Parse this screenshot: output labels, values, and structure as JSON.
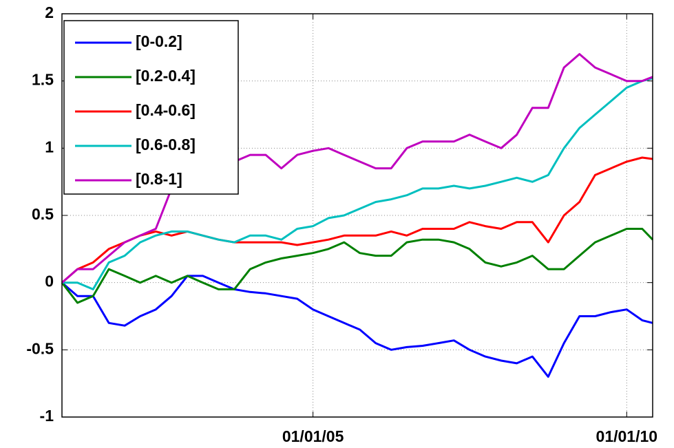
{
  "chart_data": {
    "type": "line",
    "x": [
      "01/01/01",
      "04/01/01",
      "07/01/01",
      "10/01/01",
      "01/01/02",
      "04/01/02",
      "07/01/02",
      "10/01/02",
      "01/01/03",
      "04/01/03",
      "07/01/03",
      "10/01/03",
      "01/01/04",
      "04/01/04",
      "07/01/04",
      "10/01/04",
      "01/01/05",
      "04/01/05",
      "07/01/05",
      "10/01/05",
      "01/01/06",
      "04/01/06",
      "07/01/06",
      "10/01/06",
      "01/01/07",
      "04/01/07",
      "07/01/07",
      "10/01/07",
      "01/01/08",
      "04/01/08",
      "07/01/08",
      "10/01/08",
      "01/01/09",
      "04/01/09",
      "07/01/09",
      "10/01/09",
      "01/01/10",
      "04/01/10",
      "06/01/10"
    ],
    "series": [
      {
        "name": "[0-0.2]",
        "color": "#0000ff",
        "values": [
          0,
          -0.1,
          -0.1,
          -0.3,
          -0.32,
          -0.25,
          -0.2,
          -0.1,
          0.05,
          0.05,
          0,
          -0.05,
          -0.07,
          -0.08,
          -0.1,
          -0.12,
          -0.2,
          -0.25,
          -0.3,
          -0.35,
          -0.45,
          -0.5,
          -0.48,
          -0.47,
          -0.45,
          -0.43,
          -0.5,
          -0.55,
          -0.58,
          -0.6,
          -0.55,
          -0.7,
          -0.45,
          -0.25,
          -0.25,
          -0.22,
          -0.2,
          -0.28,
          -0.3
        ]
      },
      {
        "name": "[0.2-0.4]",
        "color": "#008000",
        "values": [
          0,
          -0.15,
          -0.1,
          0.1,
          0.05,
          0,
          0.05,
          0,
          0.05,
          0,
          -0.05,
          -0.05,
          0.1,
          0.15,
          0.18,
          0.2,
          0.22,
          0.25,
          0.3,
          0.22,
          0.2,
          0.2,
          0.3,
          0.32,
          0.32,
          0.3,
          0.25,
          0.15,
          0.12,
          0.15,
          0.2,
          0.1,
          0.1,
          0.2,
          0.3,
          0.35,
          0.4,
          0.4,
          0.32
        ]
      },
      {
        "name": "[0.4-0.6]",
        "color": "#ff0000",
        "values": [
          0,
          0.1,
          0.15,
          0.25,
          0.3,
          0.35,
          0.38,
          0.35,
          0.38,
          0.35,
          0.32,
          0.3,
          0.3,
          0.3,
          0.3,
          0.28,
          0.3,
          0.32,
          0.35,
          0.35,
          0.35,
          0.38,
          0.35,
          0.4,
          0.4,
          0.4,
          0.45,
          0.42,
          0.4,
          0.45,
          0.45,
          0.3,
          0.5,
          0.6,
          0.8,
          0.85,
          0.9,
          0.93,
          0.92
        ]
      },
      {
        "name": "[0.6-0.8]",
        "color": "#00bfbf",
        "values": [
          0,
          0,
          -0.05,
          0.15,
          0.2,
          0.3,
          0.35,
          0.38,
          0.38,
          0.35,
          0.32,
          0.3,
          0.35,
          0.35,
          0.32,
          0.4,
          0.42,
          0.48,
          0.5,
          0.55,
          0.6,
          0.62,
          0.65,
          0.7,
          0.7,
          0.72,
          0.7,
          0.72,
          0.75,
          0.78,
          0.75,
          0.8,
          1.0,
          1.15,
          1.25,
          1.35,
          1.45,
          1.5,
          1.52
        ]
      },
      {
        "name": "[0.8-1]",
        "color": "#bf00bf",
        "values": [
          0,
          0.1,
          0.1,
          0.2,
          0.3,
          0.35,
          0.4,
          0.7,
          0.75,
          0.8,
          0.85,
          0.9,
          0.95,
          0.95,
          0.85,
          0.95,
          0.98,
          1.0,
          0.95,
          0.9,
          0.85,
          0.85,
          1.0,
          1.05,
          1.05,
          1.05,
          1.1,
          1.05,
          1.0,
          1.1,
          1.3,
          1.3,
          1.6,
          1.7,
          1.6,
          1.55,
          1.5,
          1.5,
          1.53
        ]
      }
    ],
    "xlim": [
      "01/01/01",
      "06/01/10"
    ],
    "xticks": [
      "01/01/05",
      "01/01/10"
    ],
    "ylim": [
      -1,
      2
    ],
    "yticks": [
      -1,
      -0.5,
      0,
      0.5,
      1,
      1.5,
      2
    ],
    "grid": true,
    "legend": "upper left"
  }
}
